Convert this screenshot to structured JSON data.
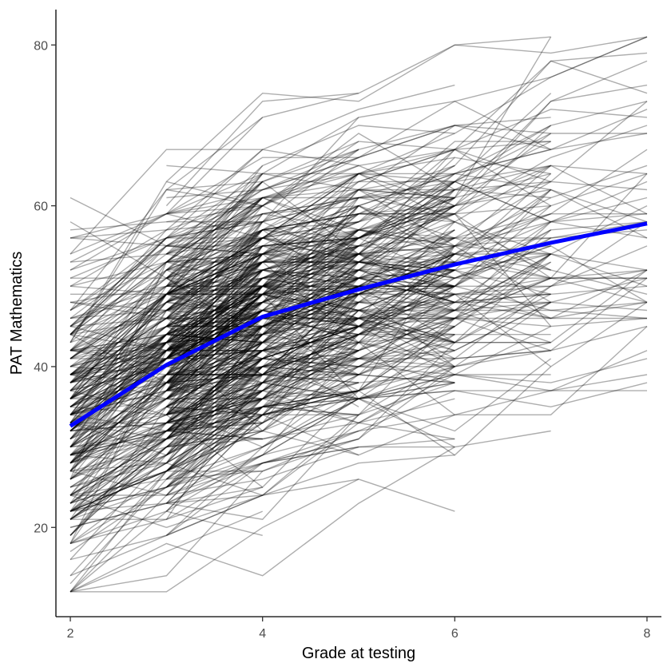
{
  "chart_data": {
    "type": "line",
    "title": "",
    "xlabel": "Grade at testing",
    "ylabel": "PAT Mathematics",
    "xlim": [
      1.85,
      8.15
    ],
    "ylim": [
      8.9,
      84.4
    ],
    "x_ticks": [
      2,
      4,
      6,
      8
    ],
    "y_ticks": [
      20,
      40,
      60,
      80
    ],
    "x_tick_labels": [
      "2",
      "4",
      "6",
      "8"
    ],
    "y_tick_labels": [
      "20",
      "40",
      "60",
      "80"
    ],
    "grid": false,
    "legend": "none",
    "individual_trajectories": {
      "description_visible": "many thin translucent black lines, one per student",
      "color": "#000000",
      "opacity": 0.32,
      "grades": [
        2,
        3,
        4,
        5,
        6,
        7,
        8
      ],
      "start_grade_range": [
        2,
        3
      ],
      "score_range": [
        12,
        81
      ]
    },
    "series": [
      {
        "values_x": [
          2,
          3,
          4,
          5,
          6,
          7,
          8
        ],
        "values": [
          32.6,
          40.2,
          46.2,
          49.6,
          52.7,
          55.4,
          57.8
        ],
        "color": "#0000ff"
      }
    ]
  }
}
